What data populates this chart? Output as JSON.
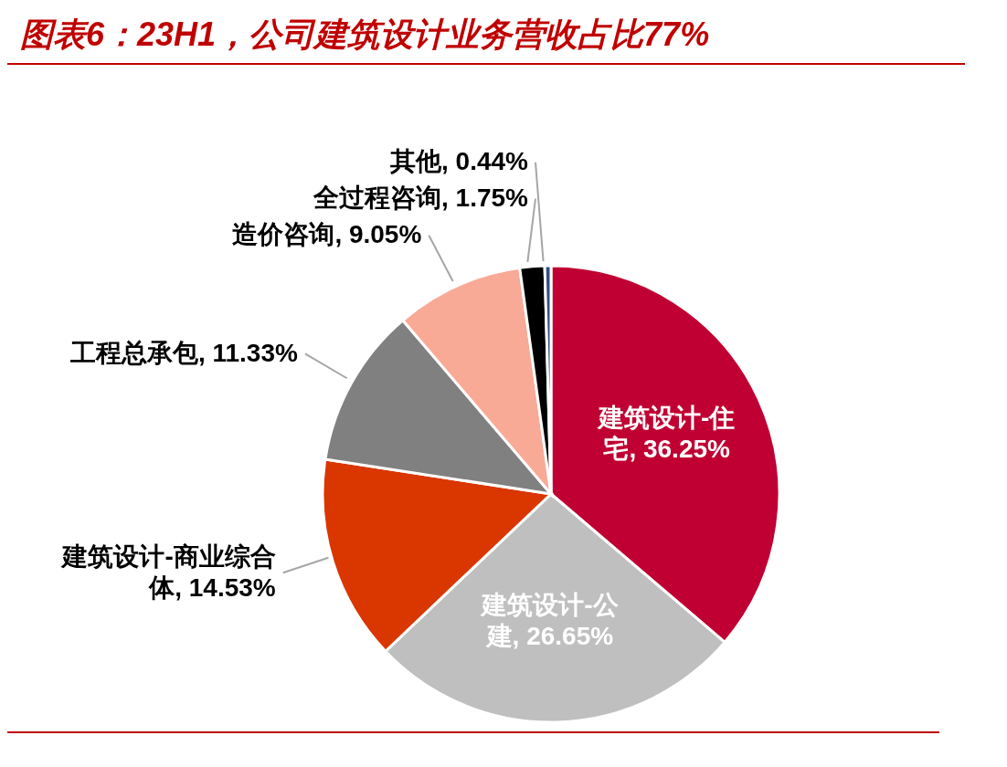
{
  "chart_data": {
    "type": "pie",
    "title": "图表6：23H1，公司建筑设计业务营收占比77%",
    "categories": [
      "建筑设计-住宅",
      "建筑设计-公建",
      "建筑设计-商业综合体",
      "工程总承包",
      "造价咨询",
      "全过程咨询",
      "其他"
    ],
    "values": [
      36.25,
      26.65,
      14.53,
      11.33,
      9.05,
      1.75,
      0.44
    ],
    "value_labels": [
      "36.25%",
      "26.65%",
      "14.53%",
      "11.33%",
      "9.05%",
      "1.75%",
      "0.44%"
    ],
    "colors": [
      "#c00032",
      "#bfbfbf",
      "#d93600",
      "#808080",
      "#f8aa97",
      "#000000",
      "#2f4f7f"
    ]
  }
}
